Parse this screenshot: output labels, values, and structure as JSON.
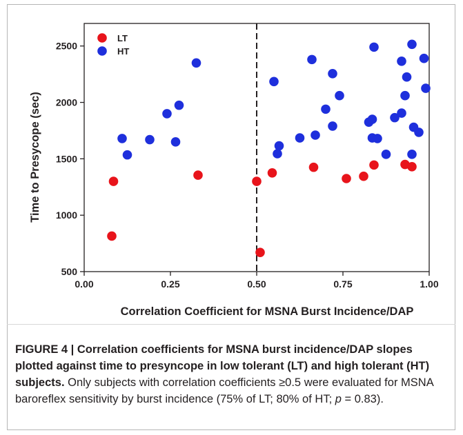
{
  "chart_data": {
    "type": "scatter",
    "xlabel": "Correlation Coefficient for MSNA Burst Incidence/DAP",
    "ylabel": "Time to Presycope (sec)",
    "xlim": [
      0,
      1.0
    ],
    "ylim": [
      500,
      2700
    ],
    "x_ticks": [
      "0.00",
      "0.25",
      "0.50",
      "0.75",
      "1.00"
    ],
    "y_ticks": [
      "500",
      "1000",
      "1500",
      "2000",
      "2500"
    ],
    "x_tick_values": [
      0,
      0.25,
      0.5,
      0.75,
      1.0
    ],
    "y_tick_values": [
      500,
      1000,
      1500,
      2000,
      2500
    ],
    "reference_line": {
      "x": 0.5,
      "style": "dashed"
    },
    "legend_position": "top-left",
    "grid": false,
    "series": [
      {
        "name": "LT",
        "color": "#e8141b",
        "points": [
          [
            0.08,
            815
          ],
          [
            0.085,
            1300
          ],
          [
            0.33,
            1355
          ],
          [
            0.5,
            1300
          ],
          [
            0.51,
            670
          ],
          [
            0.545,
            1375
          ],
          [
            0.665,
            1425
          ],
          [
            0.76,
            1325
          ],
          [
            0.81,
            1345
          ],
          [
            0.84,
            1445
          ],
          [
            0.93,
            1450
          ],
          [
            0.95,
            1430
          ]
        ]
      },
      {
        "name": "HT",
        "color": "#1e2fdc",
        "points": [
          [
            0.11,
            1680
          ],
          [
            0.125,
            1535
          ],
          [
            0.19,
            1670
          ],
          [
            0.24,
            1900
          ],
          [
            0.265,
            1650
          ],
          [
            0.275,
            1975
          ],
          [
            0.325,
            2350
          ],
          [
            0.55,
            2185
          ],
          [
            0.56,
            1545
          ],
          [
            0.565,
            1615
          ],
          [
            0.625,
            1685
          ],
          [
            0.66,
            2380
          ],
          [
            0.67,
            1710
          ],
          [
            0.7,
            1940
          ],
          [
            0.72,
            2255
          ],
          [
            0.72,
            1790
          ],
          [
            0.74,
            2060
          ],
          [
            0.825,
            1825
          ],
          [
            0.835,
            1850
          ],
          [
            0.835,
            1685
          ],
          [
            0.84,
            2490
          ],
          [
            0.85,
            1680
          ],
          [
            0.875,
            1540
          ],
          [
            0.9,
            1865
          ],
          [
            0.92,
            2365
          ],
          [
            0.92,
            1905
          ],
          [
            0.93,
            2060
          ],
          [
            0.935,
            2225
          ],
          [
            0.95,
            2515
          ],
          [
            0.95,
            1540
          ],
          [
            0.955,
            1780
          ],
          [
            0.97,
            1735
          ],
          [
            0.985,
            2390
          ],
          [
            0.99,
            2125
          ]
        ]
      }
    ]
  },
  "caption": {
    "bold": "FIGURE 4 | Correlation coefficients for MSNA burst incidence/DAP slopes plotted against time to presyncope in low tolerant (LT) and high tolerant (HT) subjects.",
    "text_1": " Only subjects with correlation coefficients ≥0.5 were evaluated for MSNA baroreflex sensitivity by burst incidence (75% of LT; 80% of HT; ",
    "p_symbol": "p",
    "text_2": " = 0.83)."
  }
}
